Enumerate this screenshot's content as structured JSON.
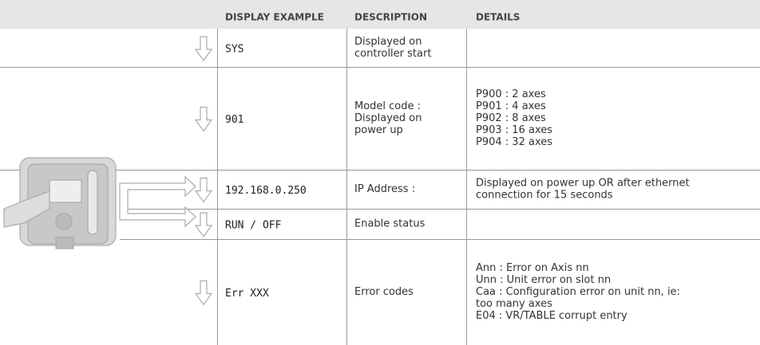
{
  "header": [
    "DISPLAY EXAMPLE",
    "DESCRIPTION",
    "DETAILS"
  ],
  "rows": [
    {
      "display": "SYS",
      "description": [
        "Displayed on",
        "controller start"
      ],
      "details": []
    },
    {
      "display": "901",
      "description": [
        "Model code :",
        "Displayed on",
        "power up"
      ],
      "details": [
        "P900 : 2 axes",
        "P901 : 4 axes",
        "P902 : 8 axes",
        "P903 : 16 axes",
        "P904 : 32 axes"
      ]
    },
    {
      "display": "192.168.0.250",
      "description": [
        "IP Address :"
      ],
      "details": [
        "Displayed on power up OR after ethernet",
        "connection for 15 seconds"
      ]
    },
    {
      "display": "RUN / OFF",
      "description": [
        "Enable status"
      ],
      "details": []
    },
    {
      "display": "Err XXX",
      "description": [
        "Error codes"
      ],
      "details": [
        "Ann : Error on Axis nn",
        "Unn : Unit error on slot nn",
        "Caa : Configuration error on unit nn, ie:",
        "too many axes",
        "E04 : VR/TABLE corrupt entry"
      ]
    }
  ]
}
